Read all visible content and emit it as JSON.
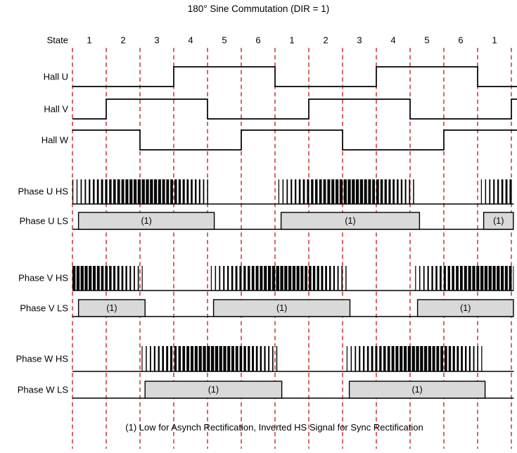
{
  "title": "180° Sine Commutation (DIR = 1)",
  "footer_note": "(1) Low for Asynch Rectification, Inverted HS Signal for Sync Rectification",
  "colors": {
    "background": "#ffffff",
    "grid": "#c00000",
    "signal": "#000000",
    "box_fill": "#d9d9d9",
    "box_border": "#000000",
    "text": "#000000"
  },
  "timeline": {
    "state_label": "State",
    "states": [
      "1",
      "2",
      "3",
      "4",
      "5",
      "6",
      "1",
      "2",
      "3",
      "4",
      "5",
      "6",
      "1"
    ]
  },
  "rows": [
    {
      "label": "Hall U",
      "type": "digital",
      "high_intervals": [
        [
          3,
          6
        ],
        [
          9,
          12
        ]
      ]
    },
    {
      "label": "Hall V",
      "type": "digital",
      "high_intervals": [
        [
          1,
          4
        ],
        [
          7,
          10
        ],
        [
          13,
          13.2
        ]
      ]
    },
    {
      "label": "Hall W",
      "type": "digital",
      "high_intervals": [
        [
          0,
          2
        ],
        [
          5,
          8
        ],
        [
          11,
          13.2
        ]
      ]
    },
    {
      "label": "Phase U HS",
      "type": "pwm",
      "bursts": [
        {
          "start": 0,
          "end": 4.12,
          "env_start": 0.05,
          "env_end": 4.12
        },
        {
          "start": 6.1,
          "end": 10.2,
          "env_start": 6.1,
          "env_end": 10.2
        },
        {
          "start": 12.1,
          "end": 13.07,
          "env_start": 12.1,
          "env_end": 16.2
        }
      ]
    },
    {
      "label": "Phase U LS",
      "type": "box",
      "box_label": "(1)",
      "boxes": [
        [
          0.18,
          4.2
        ],
        [
          6.18,
          10.28
        ],
        [
          12.18,
          13.06
        ]
      ]
    },
    {
      "label": "Phase V HS",
      "type": "pwm",
      "bursts": [
        {
          "start": 0,
          "end": 2.08,
          "env_start": -1.95,
          "env_end": 2.08
        },
        {
          "start": 4.1,
          "end": 8.15,
          "env_start": 4.1,
          "env_end": 8.15
        },
        {
          "start": 10.15,
          "end": 13.07,
          "env_start": 10.15,
          "env_end": 14.25
        }
      ]
    },
    {
      "label": "Phase V LS",
      "type": "box",
      "box_label": "(1)",
      "boxes": [
        [
          0.18,
          2.15
        ],
        [
          4.18,
          8.22
        ],
        [
          10.22,
          13.06
        ]
      ]
    },
    {
      "label": "Phase W HS",
      "type": "pwm",
      "bursts": [
        {
          "start": 2.05,
          "end": 6.1,
          "env_start": 2.05,
          "env_end": 6.1
        },
        {
          "start": 8.12,
          "end": 12.15,
          "env_start": 8.12,
          "env_end": 12.15
        }
      ]
    },
    {
      "label": "Phase W LS",
      "type": "box",
      "box_label": "(1)",
      "boxes": [
        [
          2.15,
          6.2
        ],
        [
          8.2,
          12.22
        ]
      ]
    }
  ]
}
